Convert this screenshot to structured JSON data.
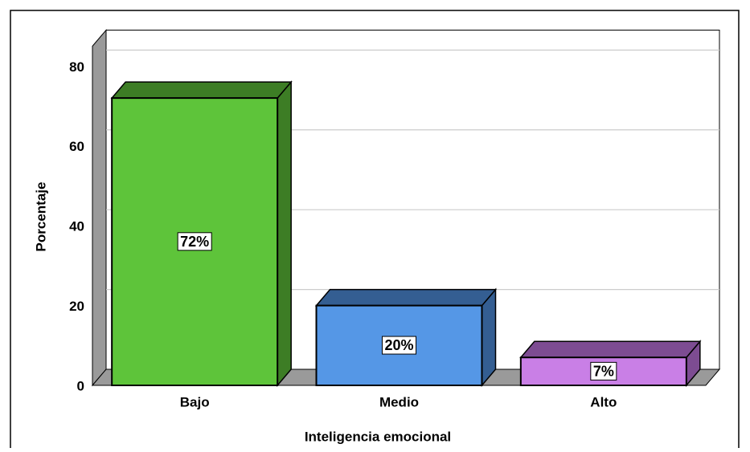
{
  "chart_data": {
    "type": "bar3d",
    "x_label": "Inteligencia emocional",
    "y_label": "Porcentaje",
    "categories": [
      "Bajo",
      "Medio",
      "Alto"
    ],
    "values": [
      72,
      20,
      7
    ],
    "value_labels": [
      "72%",
      "20%",
      "7%"
    ],
    "colors": [
      "#5ec43a",
      "#5597e6",
      "#c97fe6"
    ],
    "side_colors": [
      "#3d7d25",
      "#345e92",
      "#7d4c92"
    ],
    "ylim": [
      0,
      85
    ],
    "yticks": [
      0,
      20,
      40,
      60,
      80
    ],
    "grid": true
  }
}
